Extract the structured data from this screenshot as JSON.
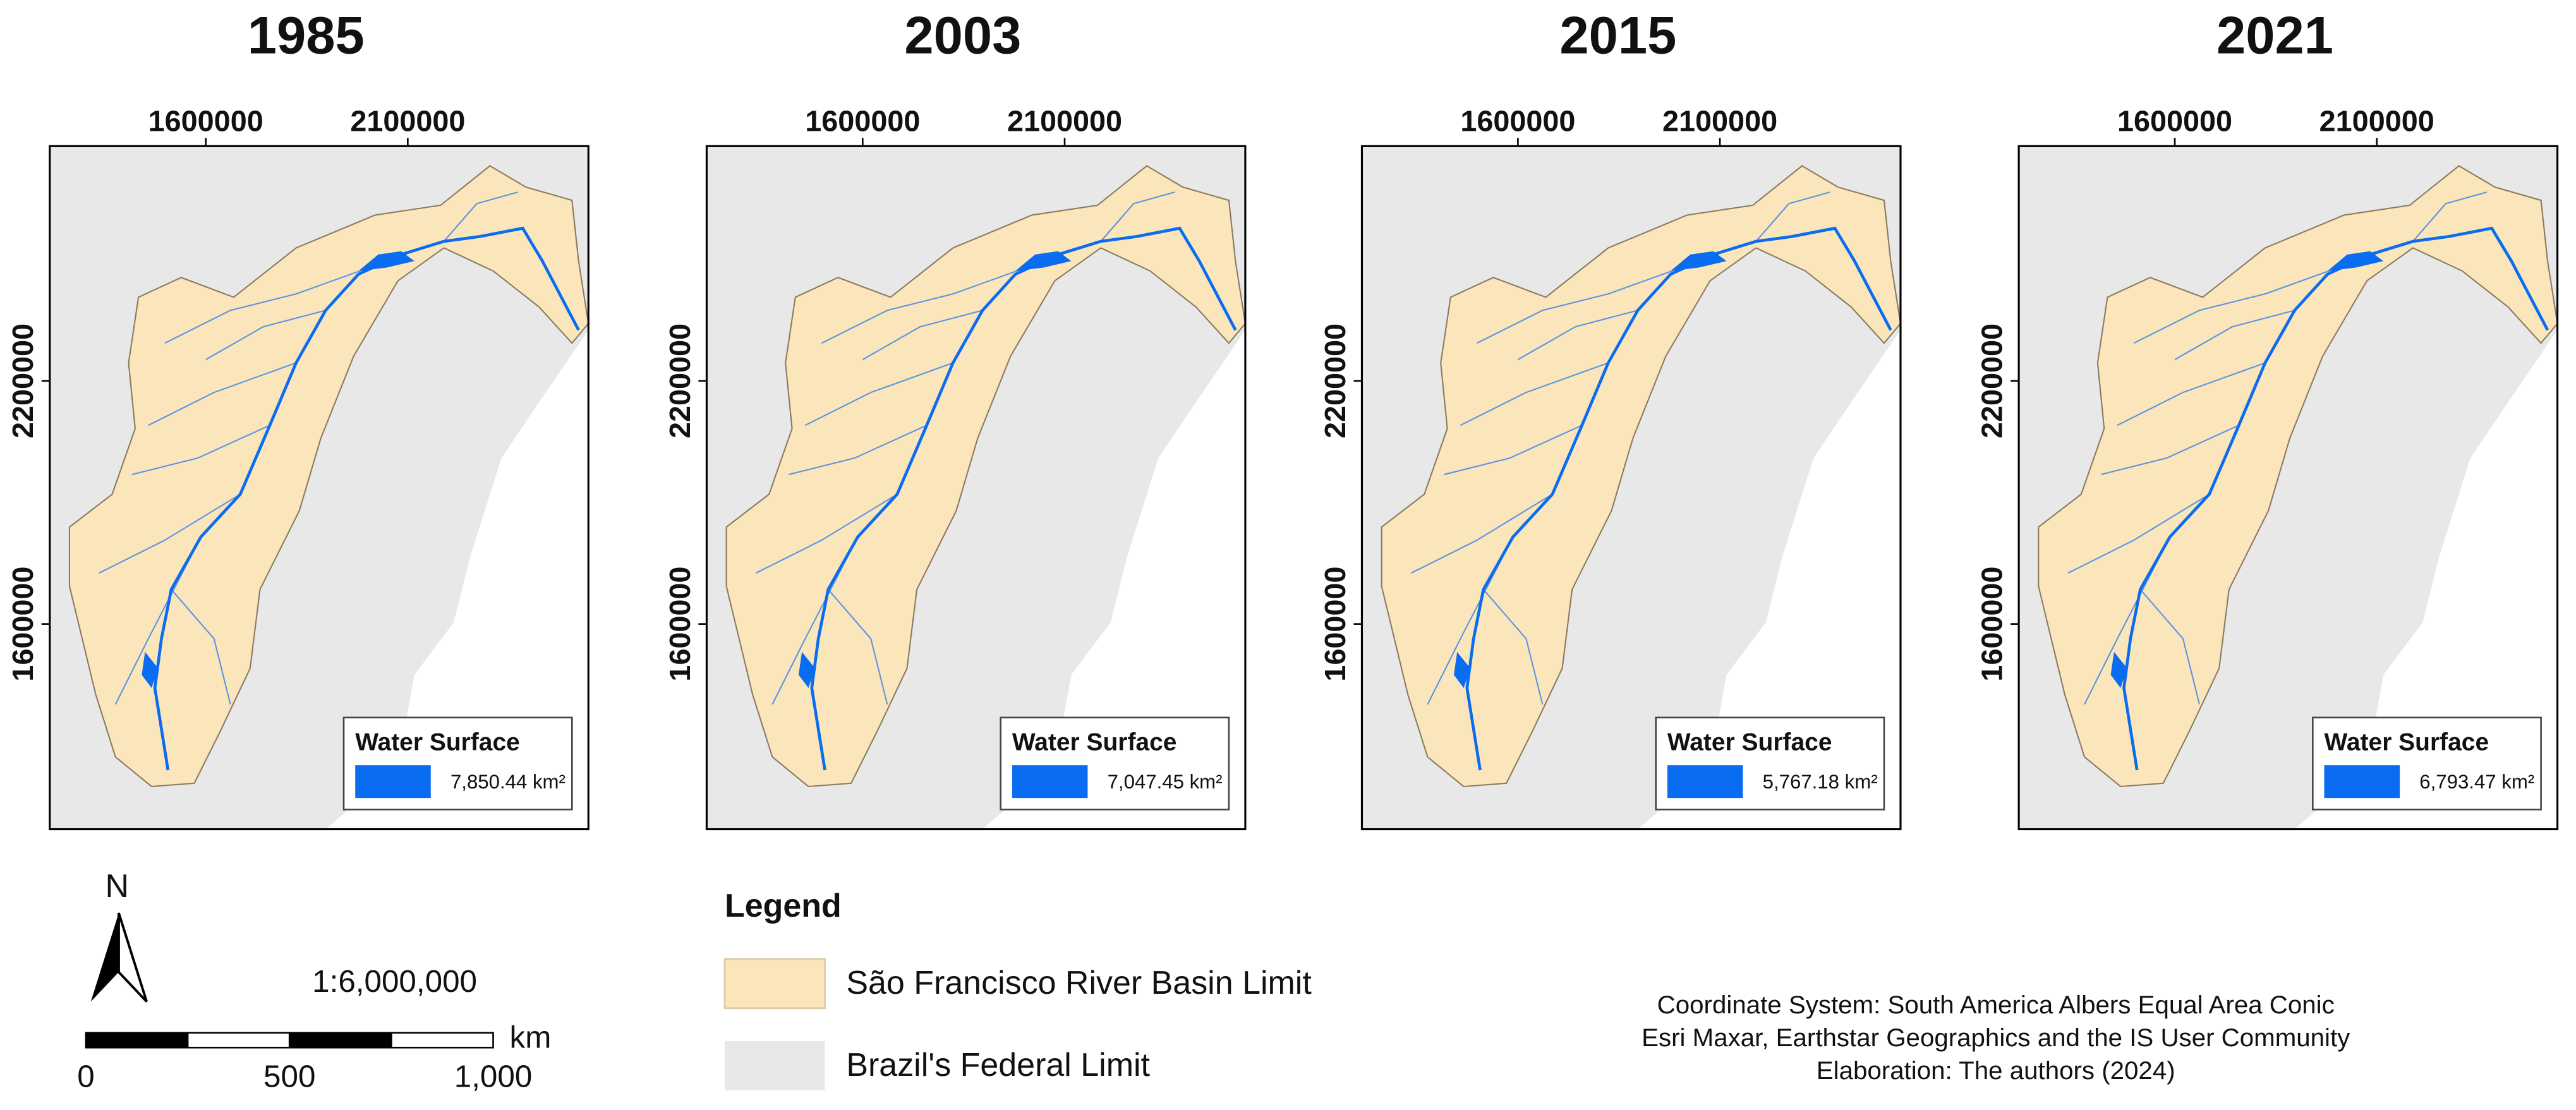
{
  "panels": [
    {
      "title": "1985",
      "x_ticks": [
        "1600000",
        "2100000"
      ],
      "y_ticks": [
        "2200000",
        "1600000"
      ],
      "legend_title": "Water Surface",
      "legend_value": "7,850.44 km²"
    },
    {
      "title": "2003",
      "x_ticks": [
        "1600000",
        "2100000"
      ],
      "y_ticks": [
        "2200000",
        "1600000"
      ],
      "legend_title": "Water Surface",
      "legend_value": "7,047.45 km²"
    },
    {
      "title": "2015",
      "x_ticks": [
        "1600000",
        "2100000"
      ],
      "y_ticks": [
        "2200000",
        "1600000"
      ],
      "legend_title": "Water Surface",
      "legend_value": "5,767.18 km²"
    },
    {
      "title": "2021",
      "x_ticks": [
        "1600000",
        "2100000"
      ],
      "y_ticks": [
        "2200000",
        "1600000"
      ],
      "legend_title": "Water Surface",
      "legend_value": "6,793.47 km²"
    }
  ],
  "north_arrow": "N",
  "scale": {
    "ratio": "1:6,000,000",
    "labels": [
      "0",
      "500",
      "1,000"
    ],
    "unit": "km"
  },
  "legend": {
    "title": "Legend",
    "items": [
      "São Francisco River Basin Limit",
      "Brazil's Federal Limit"
    ]
  },
  "credits": [
    "Coordinate System: South America Albers Equal Area Conic",
    "Esri Maxar, Earthstar Geographics and the IS User Community",
    "Elaboration: The authors (2024)"
  ]
}
